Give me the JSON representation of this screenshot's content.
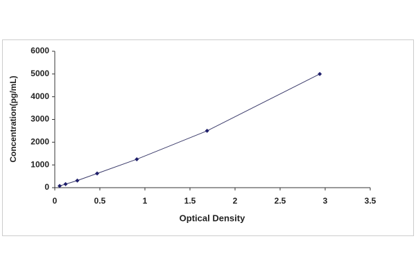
{
  "chart_data": {
    "type": "scatter",
    "xlabel": "Optical Density",
    "ylabel": "Concentration(pg/mL)",
    "x": [
      0.054,
      0.12,
      0.25,
      0.47,
      0.91,
      1.69,
      2.94
    ],
    "values": [
      78,
      156,
      312,
      625,
      1250,
      2500,
      5000
    ],
    "color": "#1f1f6b",
    "line_color": "#3a3a6a",
    "line": true,
    "xlim": [
      0,
      3.5
    ],
    "xticks": [
      0,
      0.5,
      1,
      1.5,
      2,
      2.5,
      3,
      3.5
    ],
    "ylim": [
      0,
      6000
    ],
    "yticks": [
      0,
      1000,
      2000,
      3000,
      4000,
      5000,
      6000
    ],
    "grid": false
  }
}
